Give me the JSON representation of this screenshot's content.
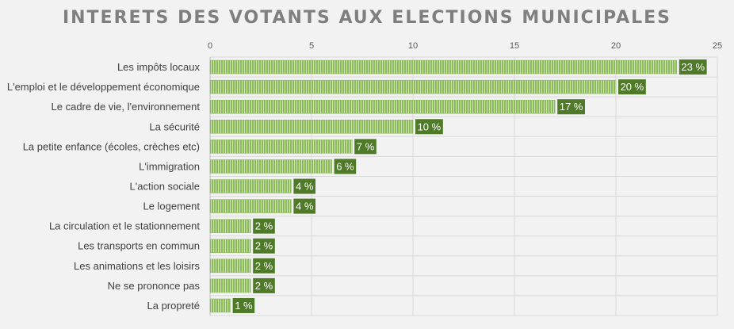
{
  "chart_data": {
    "type": "bar",
    "orientation": "horizontal",
    "title": "INTERETS DES VOTANTS AUX ELECTIONS MUNICIPALES",
    "categories": [
      "Les impôts locaux",
      "L'emploi et le développement économique",
      "Le cadre de vie, l'environnement",
      "La sécurité",
      "La petite enfance (écoles, crèches etc)",
      "L'immigration",
      "L'action sociale",
      "Le logement",
      "La circulation et le stationnement",
      "Les transports en commun",
      "Les animations et les loisirs",
      "Ne se prononce pas",
      "La propreté"
    ],
    "values": [
      23,
      20,
      17,
      10,
      7,
      6,
      4,
      4,
      2,
      2,
      2,
      2,
      1
    ],
    "data_labels": [
      "23 %",
      "20 %",
      "17 %",
      "10 %",
      "7 %",
      "6 %",
      "4 %",
      "4 %",
      "2 %",
      "2 %",
      "2 %",
      "2 %",
      "1 %"
    ],
    "x_ticks": [
      "0",
      "5",
      "10",
      "15",
      "20",
      "25"
    ],
    "xlim": [
      0,
      25
    ],
    "x_axis_position": "top",
    "grid": true,
    "colors": {
      "bar": "#8dbb5a",
      "bar_stripe": "#ffffff",
      "label_bg": "#4f7a28",
      "title": "#7f7f7f",
      "grid": "#d9d9d9",
      "background": "#f2f2f2"
    }
  }
}
